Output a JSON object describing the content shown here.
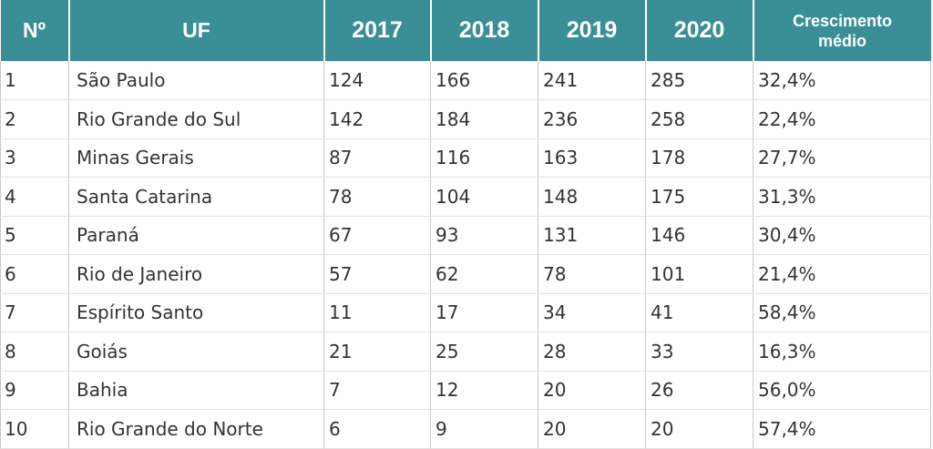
{
  "headers": {
    "num": "Nº",
    "uf": "UF",
    "y2017": "2017",
    "y2018": "2018",
    "y2019": "2019",
    "y2020": "2020",
    "growth_line1": "Crescimento",
    "growth_line2": "médio"
  },
  "rows": [
    {
      "num": "1",
      "uf": "São Paulo",
      "y2017": "124",
      "y2018": "166",
      "y2019": "241",
      "y2020": "285",
      "growth": "32,4%"
    },
    {
      "num": "2",
      "uf": "Rio Grande do Sul",
      "y2017": "142",
      "y2018": "184",
      "y2019": "236",
      "y2020": "258",
      "growth": "22,4%"
    },
    {
      "num": "3",
      "uf": "Minas Gerais",
      "y2017": "87",
      "y2018": "116",
      "y2019": "163",
      "y2020": "178",
      "growth": "27,7%"
    },
    {
      "num": "4",
      "uf": "Santa Catarina",
      "y2017": "78",
      "y2018": "104",
      "y2019": "148",
      "y2020": "175",
      "growth": "31,3%"
    },
    {
      "num": "5",
      "uf": "Paraná",
      "y2017": "67",
      "y2018": "93",
      "y2019": "131",
      "y2020": "146",
      "growth": "30,4%"
    },
    {
      "num": "6",
      "uf": "Rio de Janeiro",
      "y2017": "57",
      "y2018": "62",
      "y2019": "78",
      "y2020": "101",
      "growth": "21,4%"
    },
    {
      "num": "7",
      "uf": "Espírito Santo",
      "y2017": "11",
      "y2018": "17",
      "y2019": "34",
      "y2020": "41",
      "growth": "58,4%"
    },
    {
      "num": "8",
      "uf": "Goiás",
      "y2017": "21",
      "y2018": "25",
      "y2019": "28",
      "y2020": "33",
      "growth": "16,3%"
    },
    {
      "num": "9",
      "uf": "Bahia",
      "y2017": "7",
      "y2018": "12",
      "y2019": "20",
      "y2020": "26",
      "growth": "56,0%"
    },
    {
      "num": "10",
      "uf": "Rio Grande do Norte",
      "y2017": "6",
      "y2018": "9",
      "y2019": "20",
      "y2020": "20",
      "growth": "57,4%"
    }
  ],
  "colors": {
    "header_bg": "#3a8e96",
    "header_text": "#ffffff",
    "cell_text": "#333333",
    "grid": "#c9c9c9"
  }
}
